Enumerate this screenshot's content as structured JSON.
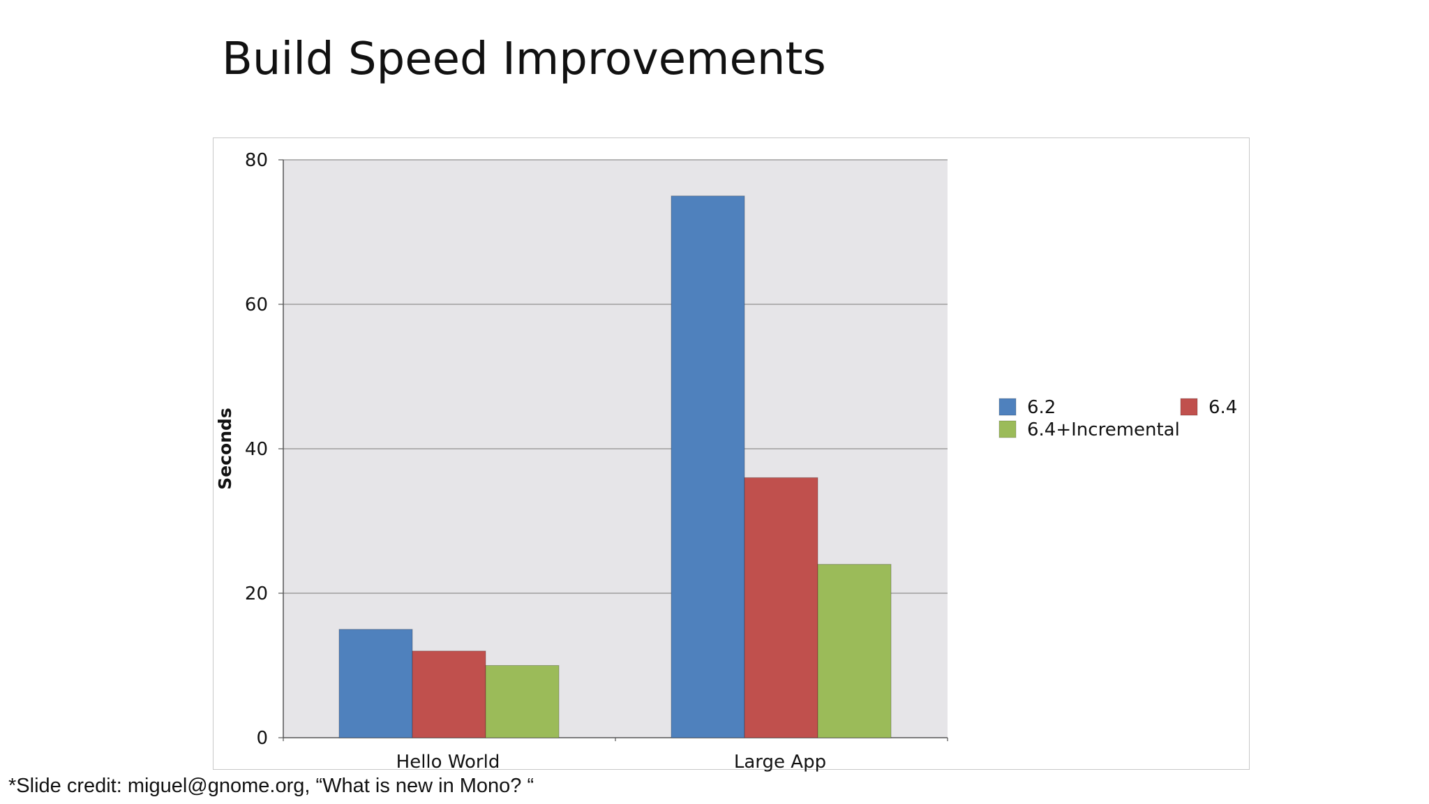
{
  "slide": {
    "title": "Build Speed Improvements",
    "footnote": "*Slide credit: miguel@gnome.org, “What is new in Mono? “"
  },
  "chart_data": {
    "type": "bar",
    "categories": [
      "Hello World",
      "Large App"
    ],
    "series": [
      {
        "name": "6.2",
        "values": [
          15,
          75
        ],
        "color": "#4f81bd"
      },
      {
        "name": "6.4",
        "values": [
          12,
          36
        ],
        "color": "#c0504d"
      },
      {
        "name": "6.4+Incremental",
        "values": [
          10,
          24
        ],
        "color": "#9bbb59"
      }
    ],
    "ylabel": "Seconds",
    "ylim": [
      0,
      80
    ],
    "yticks": [
      0,
      20,
      40,
      60,
      80
    ],
    "grid": true,
    "legend_position": "right"
  }
}
